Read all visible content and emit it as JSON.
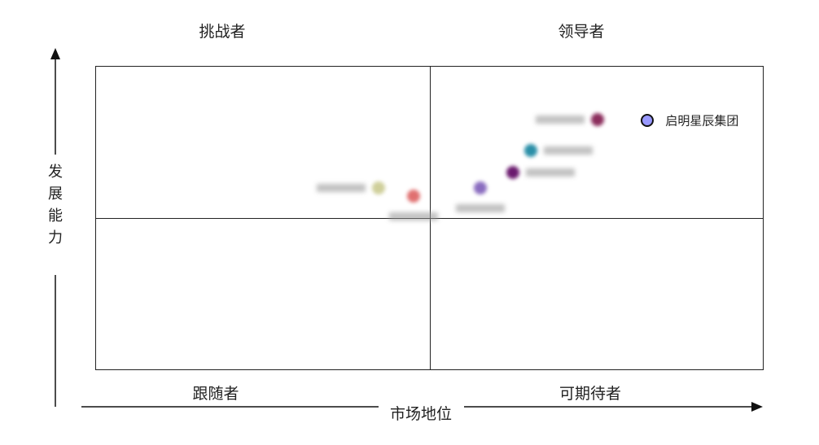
{
  "chart_data": {
    "type": "scatter",
    "title": "",
    "xlabel": "市场地位",
    "ylabel": "发展能力",
    "xlim": [
      0,
      100
    ],
    "ylim": [
      0,
      100
    ],
    "quadrant_split": {
      "x": 50,
      "y": 50
    },
    "quadrants": {
      "top_left": "挑战者",
      "top_right": "领导者",
      "bottom_left": "跟随者",
      "bottom_right": "可期待者"
    },
    "grid": false,
    "points": [
      {
        "name": "启明星辰集团",
        "x": 82.5,
        "y": 82.4,
        "color": "#9999ff",
        "blurred": false,
        "label_side": "right"
      },
      {
        "name": "",
        "x": 75.0,
        "y": 82.6,
        "color": "#8b2d5c",
        "blurred": true,
        "label_side": "left"
      },
      {
        "name": "",
        "x": 65.0,
        "y": 72.5,
        "color": "#2a8fa8",
        "blurred": true,
        "label_side": "right"
      },
      {
        "name": "",
        "x": 62.4,
        "y": 65.2,
        "color": "#6a1a6e",
        "blurred": true,
        "label_side": "right"
      },
      {
        "name": "",
        "x": 57.5,
        "y": 60.2,
        "color": "#8a6cc0",
        "blurred": true,
        "label_side": "below"
      },
      {
        "name": "",
        "x": 42.3,
        "y": 60.2,
        "color": "#cfcf9a",
        "blurred": true,
        "label_side": "left"
      },
      {
        "name": "",
        "x": 47.5,
        "y": 57.5,
        "color": "#e07070",
        "blurred": true,
        "label_side": "below"
      }
    ]
  }
}
